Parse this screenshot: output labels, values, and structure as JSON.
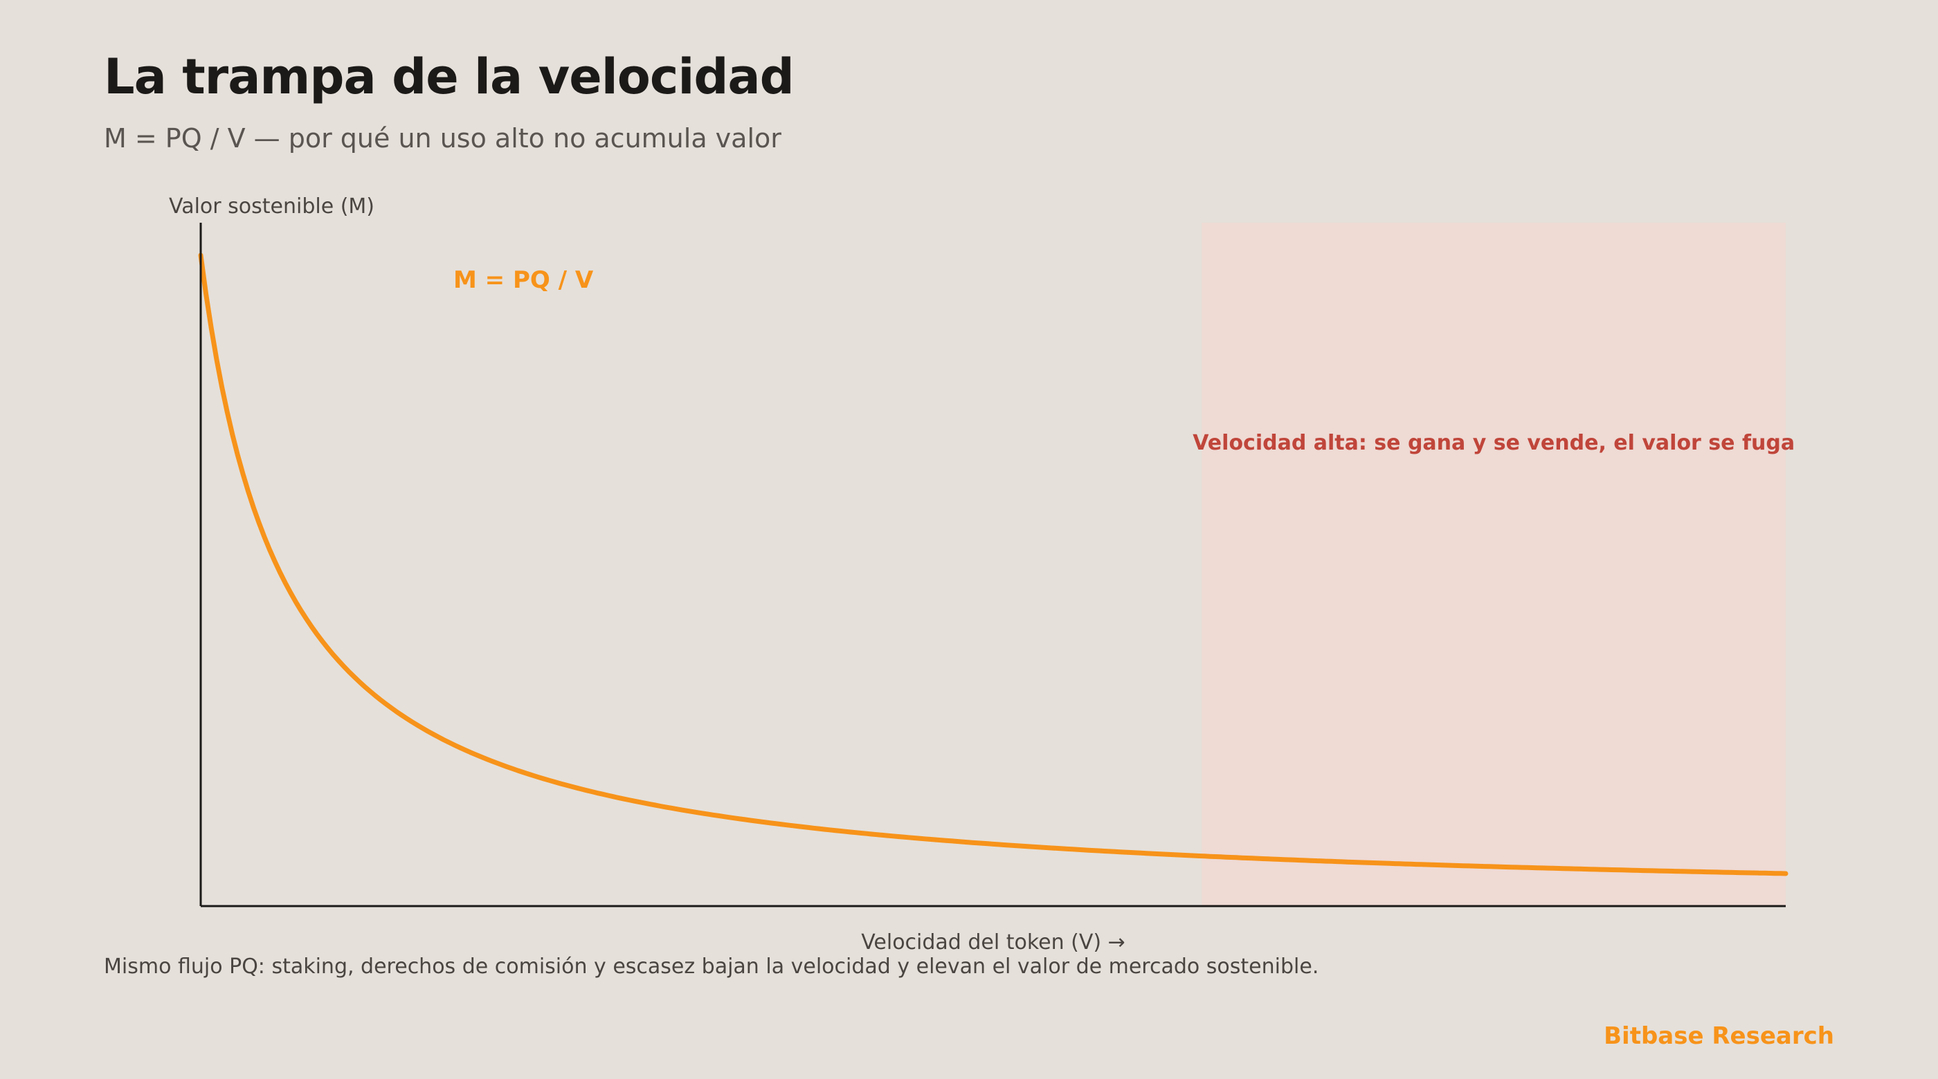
{
  "header": {
    "title": "La trampa de la velocidad",
    "subtitle": "M = PQ / V — por qué un uso alto no acumula valor"
  },
  "footer": {
    "note": "Mismo flujo PQ: staking, derechos de comisión y escasez bajan la velocidad y elevan el valor de mercado sostenible.",
    "brand": "Bitbase Research"
  },
  "colors": {
    "background": "#e5e0da",
    "curve": "#f7931a",
    "zone_fill": "#efdad4",
    "zone_text": "#c0453a",
    "axis": "#1c1a18"
  },
  "chart_data": {
    "type": "line",
    "title": "",
    "xlabel": "Velocidad del token (V) →",
    "ylabel": "Valor sostenible (M)",
    "x_range": [
      1,
      20
    ],
    "y_range": [
      0,
      10.5
    ],
    "series": [
      {
        "name": "M = PQ / V",
        "formula": "M = PQ / V",
        "pq": 10,
        "x": [
          1,
          1.5,
          2,
          2.5,
          3,
          4,
          5,
          6,
          7,
          8,
          9,
          10,
          12,
          14,
          16,
          18,
          20
        ],
        "values": [
          10,
          6.67,
          5,
          4,
          3.33,
          2.5,
          2,
          1.67,
          1.43,
          1.25,
          1.11,
          1,
          0.83,
          0.71,
          0.63,
          0.56,
          0.5
        ]
      }
    ],
    "highlight_zone": {
      "x_start": 13,
      "x_end": 20,
      "label": "Velocidad alta: se gana y se vende, el valor se fuga"
    },
    "grid": false
  }
}
